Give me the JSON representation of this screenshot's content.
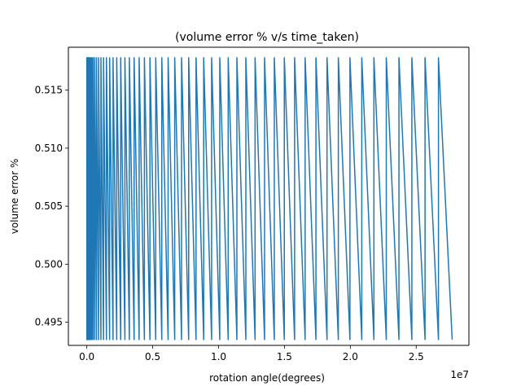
{
  "chart_data": {
    "type": "line",
    "title": "(volume error % v/s time_taken)",
    "xlabel": "rotation angle(degrees)",
    "ylabel": "volume error %",
    "x_offset_label": "1e7",
    "xlim": [
      -1400000,
      29000000
    ],
    "ylim": [
      0.493,
      0.5187
    ],
    "xticks": [
      {
        "value": 0,
        "label": "0.0"
      },
      {
        "value": 5000000,
        "label": "0.5"
      },
      {
        "value": 10000000,
        "label": "1.0"
      },
      {
        "value": 15000000,
        "label": "1.5"
      },
      {
        "value": 20000000,
        "label": "2.0"
      },
      {
        "value": 25000000,
        "label": "2.5"
      }
    ],
    "yticks": [
      {
        "value": 0.495,
        "label": "0.495"
      },
      {
        "value": 0.5,
        "label": "0.500"
      },
      {
        "value": 0.505,
        "label": "0.505"
      },
      {
        "value": 0.51,
        "label": "0.510"
      },
      {
        "value": 0.515,
        "label": "0.515"
      }
    ],
    "grid": false,
    "series": [
      {
        "color": "#1f77b4",
        "y_high": 0.5178,
        "y_low": 0.4935,
        "x": [
          0,
          3000,
          3000,
          12000,
          12000,
          30000,
          30000,
          60000,
          60000,
          100000,
          100000,
          150000,
          150000,
          210000,
          210000,
          280000,
          280000,
          370000,
          370000,
          470000,
          470000,
          590000,
          590000,
          730000,
          730000,
          890000,
          890000,
          1070000,
          1070000,
          1270000,
          1270000,
          1490000,
          1490000,
          1730000,
          1730000,
          1990000,
          1990000,
          2270000,
          2270000,
          2570000,
          2570000,
          2890000,
          2890000,
          3230000,
          3230000,
          3590000,
          3590000,
          3970000,
          3970000,
          4370000,
          4370000,
          4790000,
          4790000,
          5230000,
          5230000,
          5690000,
          5690000,
          6170000,
          6170000,
          6670000,
          6670000,
          7190000,
          7190000,
          7730000,
          7730000,
          8290000,
          8290000,
          8870000,
          8870000,
          9470000,
          9470000,
          10090000,
          10090000,
          10730000,
          10730000,
          11390000,
          11390000,
          12070000,
          12070000,
          12770000,
          12770000,
          13490000,
          13490000,
          14230000,
          14230000,
          14990000,
          14990000,
          15770000,
          15770000,
          16570000,
          16570000,
          17390000,
          17390000,
          18230000,
          18230000,
          19090000,
          19090000,
          19970000,
          19970000,
          20870000,
          20870000,
          21790000,
          21790000,
          22730000,
          22730000,
          23690000,
          23690000,
          24670000,
          24670000,
          25670000,
          25670000,
          26690000,
          26690000,
          27730000
        ],
        "y": [
          0.5178,
          0.4935,
          0.5178,
          0.4935,
          0.5178,
          0.4935,
          0.5178,
          0.4935,
          0.5178,
          0.4935,
          0.5178,
          0.4935,
          0.5178,
          0.4935,
          0.5178,
          0.4935,
          0.5178,
          0.4935,
          0.5178,
          0.4935,
          0.5178,
          0.4935,
          0.5178,
          0.4935,
          0.5178,
          0.4935,
          0.5178,
          0.4935,
          0.5178,
          0.4935,
          0.5178,
          0.4935,
          0.5178,
          0.4935,
          0.5178,
          0.4935,
          0.5178,
          0.4935,
          0.5178,
          0.4935,
          0.5178,
          0.4935,
          0.5178,
          0.4935,
          0.5178,
          0.4935,
          0.5178,
          0.4935,
          0.5178,
          0.4935,
          0.5178,
          0.4935,
          0.5178,
          0.4935,
          0.5178,
          0.4935,
          0.5178,
          0.4935,
          0.5178,
          0.4935,
          0.5178,
          0.4935,
          0.5178,
          0.4935,
          0.5178,
          0.4935,
          0.5178,
          0.4935,
          0.5178,
          0.4935,
          0.5178,
          0.4935,
          0.5178,
          0.4935,
          0.5178,
          0.4935,
          0.5178,
          0.4935,
          0.5178,
          0.4935,
          0.5178,
          0.4935,
          0.5178,
          0.4935,
          0.5178,
          0.4935,
          0.5178,
          0.4935,
          0.5178,
          0.4935,
          0.5178,
          0.4935,
          0.5178,
          0.4935,
          0.5178,
          0.4935,
          0.5178,
          0.4935,
          0.5178,
          0.4935,
          0.5178,
          0.4935,
          0.5178,
          0.4935,
          0.5178,
          0.4935,
          0.5178,
          0.4935,
          0.5178,
          0.4935,
          0.5178,
          0.4935,
          0.5178,
          0.4935
        ]
      }
    ]
  }
}
